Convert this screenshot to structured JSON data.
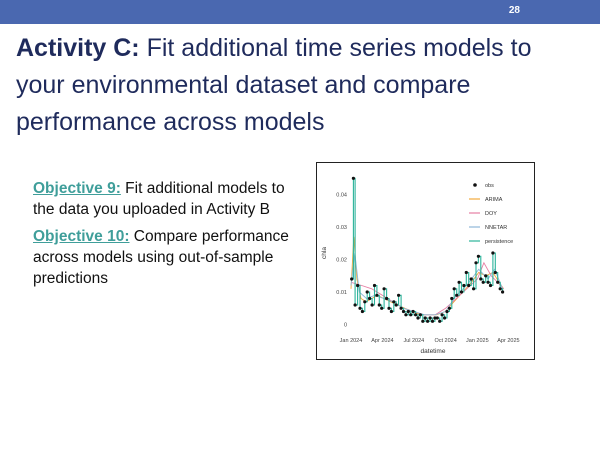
{
  "slide": {
    "number": "28",
    "title_bold": "Activity C:",
    "title_rest": " Fit additional time series models to your environmental dataset and compare performance across models",
    "objectives": [
      {
        "label": "Objective 9:",
        "text": " Fit additional models to the data you uploaded in Activity B"
      },
      {
        "label": "Objective 10:",
        "text": " Compare performance across models using out-of-sample predictions"
      }
    ]
  },
  "colors": {
    "topbar": "#4a68b0",
    "title": "#1f2b5c",
    "objective_label": "#3f9e9a"
  },
  "chart_data": {
    "type": "line",
    "xlabel": "datetime",
    "ylabel": "chla",
    "x_ticks": [
      "Jan 2024",
      "Apr 2024",
      "Jul 2024",
      "Oct 2024",
      "Jan 2025",
      "Apr 2025"
    ],
    "y_ticks": [
      "0",
      "0.01",
      "0.02",
      "0.03",
      "0.04"
    ],
    "xlim": [
      "2024-01-01",
      "2025-04-20"
    ],
    "ylim": [
      -0.002,
      0.046
    ],
    "legend_position": "top-right",
    "obs": {
      "name": "obs",
      "color": "#111111",
      "points": [
        [
          "2024-01-03",
          0.014
        ],
        [
          "2024-01-08",
          0.045
        ],
        [
          "2024-01-13",
          0.006
        ],
        [
          "2024-01-20",
          0.012
        ],
        [
          "2024-01-27",
          0.005
        ],
        [
          "2024-02-03",
          0.004
        ],
        [
          "2024-02-10",
          0.007
        ],
        [
          "2024-02-17",
          0.01
        ],
        [
          "2024-02-24",
          0.008
        ],
        [
          "2024-03-02",
          0.006
        ],
        [
          "2024-03-09",
          0.012
        ],
        [
          "2024-03-16",
          0.009
        ],
        [
          "2024-03-23",
          0.006
        ],
        [
          "2024-03-30",
          0.005
        ],
        [
          "2024-04-06",
          0.011
        ],
        [
          "2024-04-13",
          0.008
        ],
        [
          "2024-04-20",
          0.005
        ],
        [
          "2024-04-27",
          0.004
        ],
        [
          "2024-05-04",
          0.007
        ],
        [
          "2024-05-11",
          0.006
        ],
        [
          "2024-05-18",
          0.009
        ],
        [
          "2024-05-25",
          0.005
        ],
        [
          "2024-06-01",
          0.004
        ],
        [
          "2024-06-08",
          0.003
        ],
        [
          "2024-06-15",
          0.004
        ],
        [
          "2024-06-22",
          0.003
        ],
        [
          "2024-06-29",
          0.004
        ],
        [
          "2024-07-06",
          0.003
        ],
        [
          "2024-07-13",
          0.002
        ],
        [
          "2024-07-20",
          0.003
        ],
        [
          "2024-07-27",
          0.001
        ],
        [
          "2024-08-03",
          0.002
        ],
        [
          "2024-08-10",
          0.001
        ],
        [
          "2024-08-17",
          0.002
        ],
        [
          "2024-08-24",
          0.001
        ],
        [
          "2024-08-31",
          0.002
        ],
        [
          "2024-09-07",
          0.002
        ],
        [
          "2024-09-14",
          0.001
        ],
        [
          "2024-09-21",
          0.003
        ],
        [
          "2024-09-28",
          0.002
        ],
        [
          "2024-10-05",
          0.004
        ],
        [
          "2024-10-12",
          0.005
        ],
        [
          "2024-10-19",
          0.008
        ],
        [
          "2024-10-26",
          0.011
        ],
        [
          "2024-11-02",
          0.009
        ],
        [
          "2024-11-09",
          0.013
        ],
        [
          "2024-11-16",
          0.01
        ],
        [
          "2024-11-23",
          0.012
        ],
        [
          "2024-11-30",
          0.016
        ],
        [
          "2024-12-07",
          0.012
        ],
        [
          "2024-12-14",
          0.014
        ],
        [
          "2024-12-21",
          0.011
        ],
        [
          "2024-12-28",
          0.019
        ],
        [
          "2025-01-04",
          0.021
        ],
        [
          "2025-01-11",
          0.014
        ],
        [
          "2025-01-18",
          0.013
        ],
        [
          "2025-01-25",
          0.015
        ],
        [
          "2025-02-01",
          0.013
        ],
        [
          "2025-02-08",
          0.012
        ],
        [
          "2025-02-15",
          0.022
        ],
        [
          "2025-02-22",
          0.016
        ],
        [
          "2025-03-01",
          0.013
        ],
        [
          "2025-03-08",
          0.011
        ],
        [
          "2025-03-15",
          0.01
        ]
      ]
    },
    "series": [
      {
        "name": "ARIMA",
        "color": "#f2a93b",
        "values": [
          [
            "2024-01-01",
            0.011
          ],
          [
            "2024-01-09",
            0.027
          ],
          [
            "2024-01-18",
            0.014
          ],
          [
            "2024-01-30",
            0.008
          ],
          [
            "2024-02-14",
            0.007
          ],
          [
            "2024-03-01",
            0.008
          ],
          [
            "2024-03-17",
            0.009
          ],
          [
            "2024-04-05",
            0.008
          ],
          [
            "2024-04-25",
            0.007
          ],
          [
            "2024-05-15",
            0.006
          ],
          [
            "2024-06-05",
            0.005
          ],
          [
            "2024-06-28",
            0.004
          ],
          [
            "2024-07-20",
            0.003
          ],
          [
            "2024-08-12",
            0.003
          ],
          [
            "2024-09-05",
            0.003
          ],
          [
            "2024-09-30",
            0.004
          ],
          [
            "2024-10-25",
            0.007
          ],
          [
            "2024-11-20",
            0.01
          ],
          [
            "2024-12-15",
            0.013
          ],
          [
            "2025-01-05",
            0.016
          ],
          [
            "2025-01-25",
            0.015
          ],
          [
            "2025-02-15",
            0.016
          ],
          [
            "2025-03-05",
            0.013
          ],
          [
            "2025-03-18",
            0.011
          ]
        ]
      },
      {
        "name": "DOY",
        "color": "#e67fa4",
        "values": [
          [
            "2024-01-01",
            0.013
          ],
          [
            "2024-02-01",
            0.012
          ],
          [
            "2024-03-01",
            0.011
          ],
          [
            "2024-04-01",
            0.009
          ],
          [
            "2024-05-01",
            0.007
          ],
          [
            "2024-06-01",
            0.005
          ],
          [
            "2024-07-01",
            0.004
          ],
          [
            "2024-08-01",
            0.003
          ],
          [
            "2024-09-01",
            0.003
          ],
          [
            "2024-10-01",
            0.005
          ],
          [
            "2024-11-01",
            0.008
          ],
          [
            "2024-12-01",
            0.011
          ],
          [
            "2025-01-01",
            0.014
          ],
          [
            "2025-01-20",
            0.019
          ],
          [
            "2025-02-10",
            0.015
          ],
          [
            "2025-03-01",
            0.013
          ],
          [
            "2025-03-18",
            0.011
          ]
        ]
      },
      {
        "name": "NNETAR",
        "color": "#8fb8d9",
        "values": [
          [
            "2024-01-01",
            0.012
          ],
          [
            "2024-01-12",
            0.022
          ],
          [
            "2024-01-25",
            0.01
          ],
          [
            "2024-02-15",
            0.008
          ],
          [
            "2024-03-10",
            0.009
          ],
          [
            "2024-04-05",
            0.008
          ],
          [
            "2024-05-01",
            0.007
          ],
          [
            "2024-06-01",
            0.005
          ],
          [
            "2024-07-01",
            0.004
          ],
          [
            "2024-08-01",
            0.003
          ],
          [
            "2024-09-01",
            0.003
          ],
          [
            "2024-10-01",
            0.004
          ],
          [
            "2024-11-01",
            0.009
          ],
          [
            "2024-12-01",
            0.012
          ],
          [
            "2025-01-05",
            0.017
          ],
          [
            "2025-02-01",
            0.014
          ],
          [
            "2025-02-20",
            0.017
          ],
          [
            "2025-03-15",
            0.011
          ]
        ]
      }
    ],
    "persistence": {
      "name": "persistence",
      "color": "#2bb39a"
    }
  }
}
